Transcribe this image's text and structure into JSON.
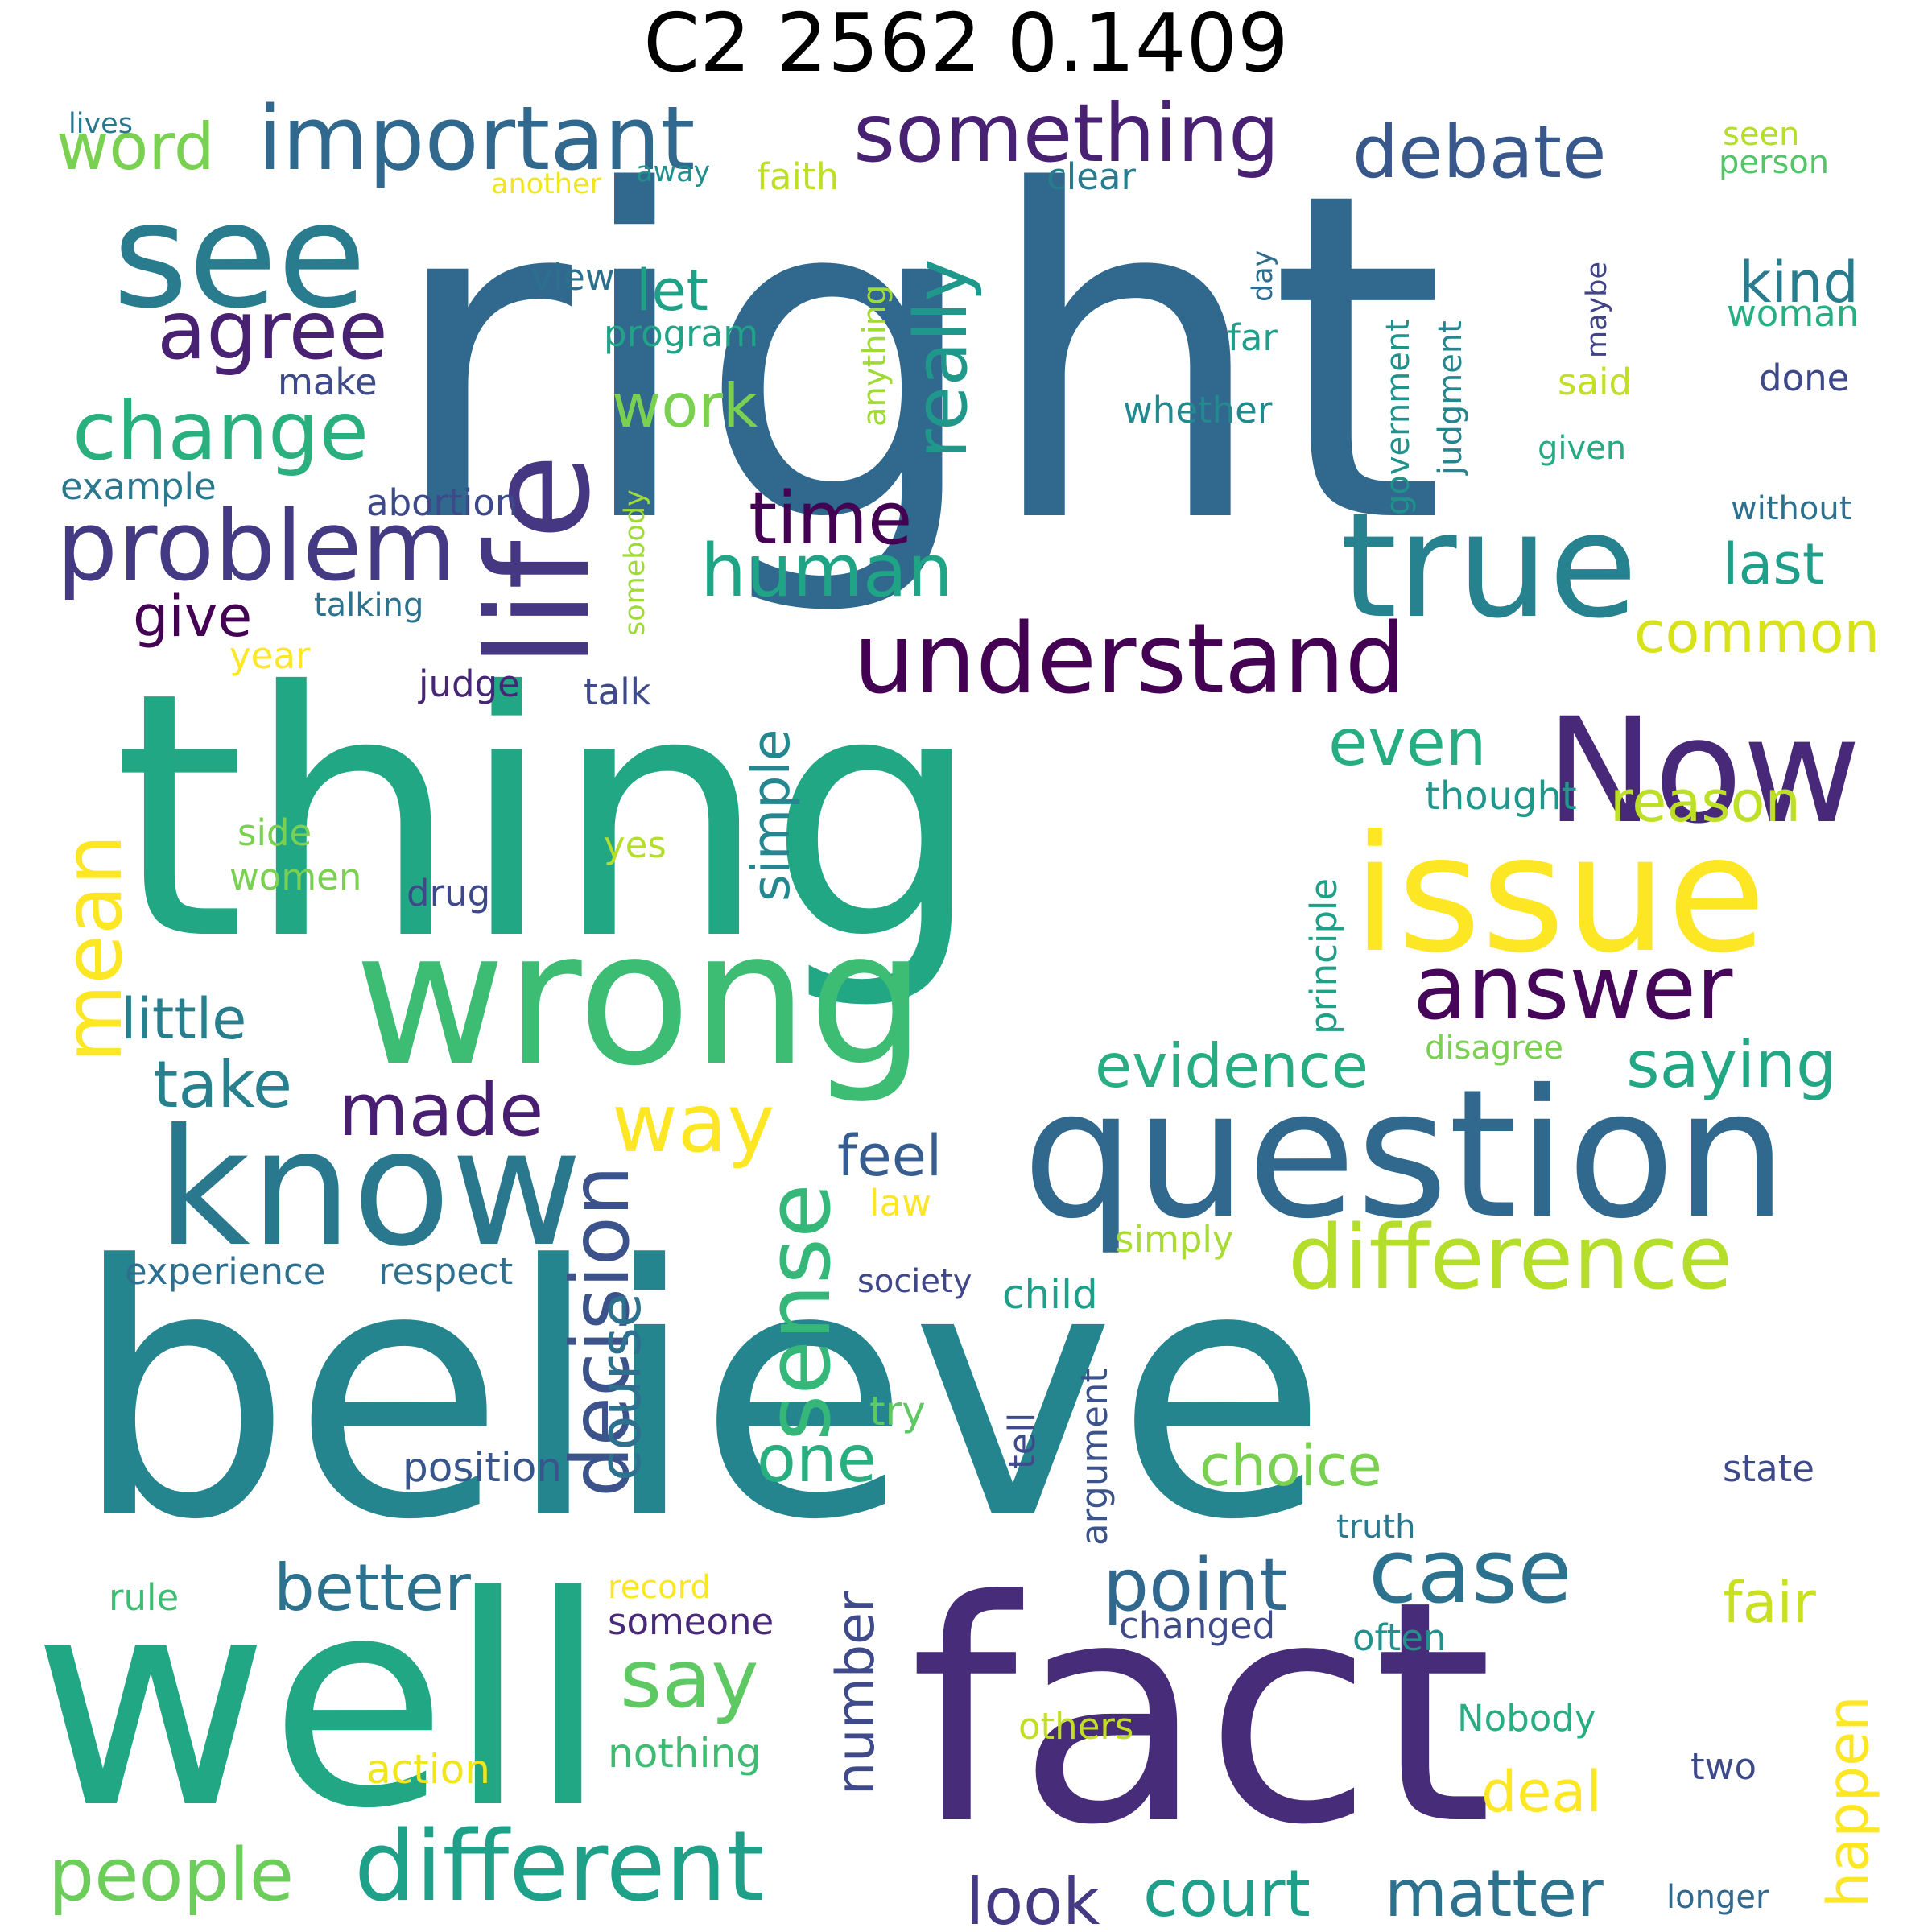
{
  "title": "C2 2562 0.1409",
  "words": [
    {
      "text": "right",
      "color": "#30688e"
    },
    {
      "text": "thing",
      "color": "#22a785"
    },
    {
      "text": "believe",
      "color": "#25858e"
    },
    {
      "text": "well",
      "color": "#22a785"
    },
    {
      "text": "fact",
      "color": "#472c7a"
    },
    {
      "text": "wrong",
      "color": "#3dbc74"
    },
    {
      "text": "question",
      "color": "#30688e"
    },
    {
      "text": "know",
      "color": "#2a788e"
    },
    {
      "text": "issue",
      "color": "#fde725"
    },
    {
      "text": "Now",
      "color": "#482878"
    },
    {
      "text": "true",
      "color": "#26828e"
    },
    {
      "text": "see",
      "color": "#297b8e"
    },
    {
      "text": "life",
      "color": "#453781"
    },
    {
      "text": "understand",
      "color": "#440154"
    },
    {
      "text": "important",
      "color": "#31688e"
    },
    {
      "text": "something",
      "color": "#482173"
    },
    {
      "text": "debate",
      "color": "#38588c"
    },
    {
      "text": "problem",
      "color": "#443983"
    },
    {
      "text": "agree",
      "color": "#482173"
    },
    {
      "text": "change",
      "color": "#2ab07f"
    },
    {
      "text": "answer",
      "color": "#46075a"
    },
    {
      "text": "different",
      "color": "#1fa088"
    },
    {
      "text": "difference",
      "color": "#b5de2b"
    },
    {
      "text": "sense",
      "color": "#35b779"
    },
    {
      "text": "decision",
      "color": "#3b528b"
    },
    {
      "text": "case",
      "color": "#2c728e"
    },
    {
      "text": "point",
      "color": "#31688e"
    },
    {
      "text": "made",
      "color": "#481f70"
    },
    {
      "text": "evidence",
      "color": "#27ad81"
    },
    {
      "text": "people",
      "color": "#6ccd5a"
    },
    {
      "text": "human",
      "color": "#20a486"
    },
    {
      "text": "time",
      "color": "#440154"
    },
    {
      "text": "word",
      "color": "#7ad151"
    },
    {
      "text": "really",
      "color": "#1f988b"
    },
    {
      "text": "mean",
      "color": "#fde725"
    },
    {
      "text": "way",
      "color": "#fde725"
    },
    {
      "text": "say",
      "color": "#5ec962"
    },
    {
      "text": "saying",
      "color": "#22a785"
    },
    {
      "text": "matter",
      "color": "#2c728e"
    },
    {
      "text": "court",
      "color": "#1f9e89"
    },
    {
      "text": "look",
      "color": "#443983"
    },
    {
      "text": "better",
      "color": "#2c728e"
    },
    {
      "text": "take",
      "color": "#27808e"
    },
    {
      "text": "little",
      "color": "#277f8e"
    },
    {
      "text": "work",
      "color": "#7ad151"
    },
    {
      "text": "even",
      "color": "#26ad81"
    },
    {
      "text": "reason",
      "color": "#bddf26"
    },
    {
      "text": "common",
      "color": "#d8e219"
    },
    {
      "text": "last",
      "color": "#1f9e89"
    },
    {
      "text": "kind",
      "color": "#287c8e"
    },
    {
      "text": "let",
      "color": "#1fa188"
    },
    {
      "text": "give",
      "color": "#440154"
    },
    {
      "text": "feel",
      "color": "#365d8d"
    },
    {
      "text": "one",
      "color": "#29af7f"
    },
    {
      "text": "choice",
      "color": "#7ad151"
    },
    {
      "text": "fair",
      "color": "#c8e020"
    },
    {
      "text": "deal",
      "color": "#fde725"
    },
    {
      "text": "happen",
      "color": "#fde725"
    },
    {
      "text": "course",
      "color": "#2d718e"
    },
    {
      "text": "simple",
      "color": "#24868e"
    },
    {
      "text": "number",
      "color": "#3e4a89"
    },
    {
      "text": "someone",
      "color": "#482878"
    },
    {
      "text": "nothing",
      "color": "#3fbc73"
    },
    {
      "text": "action",
      "color": "#f1e51d"
    },
    {
      "text": "record",
      "color": "#fde725"
    },
    {
      "text": "rule",
      "color": "#3dbc74"
    },
    {
      "text": "others",
      "color": "#c2df23"
    },
    {
      "text": "Nobody",
      "color": "#27ad81"
    },
    {
      "text": "two",
      "color": "#3e4989"
    },
    {
      "text": "longer",
      "color": "#31688e"
    },
    {
      "text": "often",
      "color": "#21918c"
    },
    {
      "text": "changed",
      "color": "#3e4a89"
    },
    {
      "text": "truth",
      "color": "#2a788e"
    },
    {
      "text": "state",
      "color": "#3e4989"
    },
    {
      "text": "argument",
      "color": "#3b528b"
    },
    {
      "text": "tell",
      "color": "#3e4a89"
    },
    {
      "text": "try",
      "color": "#5ec962"
    },
    {
      "text": "position",
      "color": "#39568c"
    },
    {
      "text": "child",
      "color": "#1f9e89"
    },
    {
      "text": "society",
      "color": "#3f4788"
    },
    {
      "text": "simply",
      "color": "#a8db34"
    },
    {
      "text": "law",
      "color": "#fde725"
    },
    {
      "text": "experience",
      "color": "#2e6e8e"
    },
    {
      "text": "respect",
      "color": "#2e6f8e"
    },
    {
      "text": "disagree",
      "color": "#7ad151"
    },
    {
      "text": "principle",
      "color": "#1fa188"
    },
    {
      "text": "thought",
      "color": "#1f988b"
    },
    {
      "text": "side",
      "color": "#7ad151"
    },
    {
      "text": "women",
      "color": "#7ad151"
    },
    {
      "text": "yes",
      "color": "#b5de2b"
    },
    {
      "text": "drug",
      "color": "#3e4989"
    },
    {
      "text": "judge",
      "color": "#482677"
    },
    {
      "text": "talk",
      "color": "#3e4a89"
    },
    {
      "text": "year",
      "color": "#fde725"
    },
    {
      "text": "talking",
      "color": "#2c728e"
    },
    {
      "text": "abortion",
      "color": "#3e4989"
    },
    {
      "text": "example",
      "color": "#2a788e"
    },
    {
      "text": "make",
      "color": "#3e4a89"
    },
    {
      "text": "view",
      "color": "#2d708e"
    },
    {
      "text": "program",
      "color": "#20a386"
    },
    {
      "text": "anything",
      "color": "#a0da39"
    },
    {
      "text": "somebody",
      "color": "#a0da39"
    },
    {
      "text": "government",
      "color": "#21918c"
    },
    {
      "text": "judgment",
      "color": "#25848e"
    },
    {
      "text": "whether",
      "color": "#23898e"
    },
    {
      "text": "far",
      "color": "#1f9e89"
    },
    {
      "text": "day",
      "color": "#2e6d8e"
    },
    {
      "text": "maybe",
      "color": "#414487"
    },
    {
      "text": "said",
      "color": "#c2df23"
    },
    {
      "text": "given",
      "color": "#25ab82"
    },
    {
      "text": "done",
      "color": "#3e4989"
    },
    {
      "text": "woman",
      "color": "#26ad81"
    },
    {
      "text": "without",
      "color": "#2d708e"
    },
    {
      "text": "clear",
      "color": "#287c8e"
    },
    {
      "text": "faith",
      "color": "#bddf26"
    },
    {
      "text": "another",
      "color": "#f1e51d"
    },
    {
      "text": "away",
      "color": "#21908d"
    },
    {
      "text": "lives",
      "color": "#2a788e"
    },
    {
      "text": "seen",
      "color": "#b5de2b"
    },
    {
      "text": "person",
      "color": "#52c569"
    }
  ]
}
